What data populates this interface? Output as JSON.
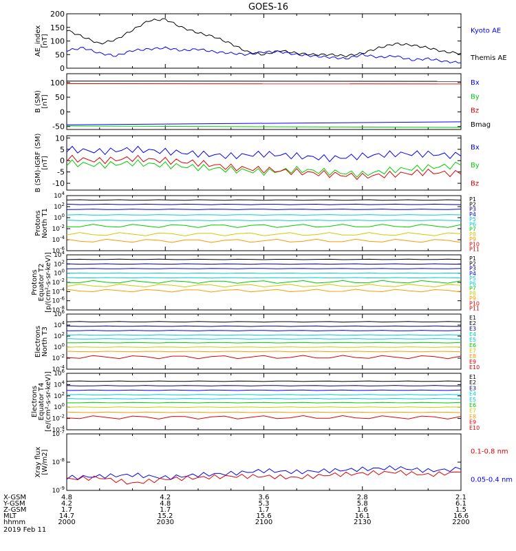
{
  "title": "GOES-16",
  "date_label": "2019 Feb 11",
  "footer": {
    "rows": [
      {
        "label": "X-GSM",
        "values": [
          "4.8",
          "4.2",
          "3.6",
          "2.8",
          "2.1"
        ]
      },
      {
        "label": "Y-GSM",
        "values": [
          "4.2",
          "4.8",
          "5.3",
          "5.8",
          "6.1"
        ]
      },
      {
        "label": "Z-GSM",
        "values": [
          "1.7",
          "1.7",
          "1.7",
          "1.6",
          "1.5"
        ]
      },
      {
        "label": "MLT",
        "values": [
          "14.7",
          "15.2",
          "15.6",
          "16.1",
          "16.6"
        ]
      },
      {
        "label": "hhmm",
        "values": [
          "2000",
          "2030",
          "2100",
          "2130",
          "2200"
        ]
      }
    ]
  },
  "colors": {
    "black": "#000000",
    "blue": "#0000ff",
    "green": "#00cc00",
    "red": "#e00000",
    "navy": "#000080",
    "cyan": "#00cccc",
    "yellow": "#cccc00",
    "orange": "#ff9900",
    "gold": "#cccc00"
  },
  "chart_data": [
    {
      "type": "line",
      "panel": "ae",
      "ylabel": [
        "AE_index",
        "[nT]"
      ],
      "ylim": [
        0,
        200
      ],
      "yticks": [
        "0",
        "50",
        "100",
        "150",
        "200"
      ],
      "legend": [
        {
          "name": "Kyoto AE",
          "color": "#0000ff"
        },
        {
          "name": "Themis AE",
          "color": "#000000"
        }
      ],
      "series": [
        {
          "name": "Themis AE",
          "color": "#000000",
          "x": [
            0,
            5,
            10,
            15,
            20,
            25,
            30,
            35,
            40,
            45,
            50,
            55,
            60,
            65,
            70,
            75,
            80,
            85,
            90,
            95,
            100,
            105,
            110,
            115,
            120
          ],
          "values": [
            140,
            115,
            90,
            105,
            140,
            175,
            180,
            150,
            130,
            115,
            90,
            60,
            50,
            65,
            55,
            50,
            50,
            45,
            55,
            75,
            90,
            85,
            75,
            60,
            55
          ]
        },
        {
          "name": "Kyoto AE",
          "color": "#0000ff",
          "x": [
            0,
            5,
            10,
            15,
            20,
            25,
            30,
            35,
            40,
            45,
            50,
            55,
            60,
            65,
            70,
            75,
            80,
            85,
            90,
            95,
            100,
            105,
            110,
            115,
            120
          ],
          "values": [
            65,
            75,
            55,
            45,
            65,
            70,
            75,
            65,
            70,
            60,
            55,
            50,
            60,
            60,
            50,
            45,
            40,
            35,
            50,
            40,
            45,
            30,
            35,
            25,
            20
          ]
        }
      ]
    },
    {
      "type": "line",
      "panel": "b_sm",
      "ylabel": [
        "B (SM)",
        "[nT]"
      ],
      "ylim": [
        -60,
        130
      ],
      "yticks": [
        "-50",
        "0",
        "50",
        "100"
      ],
      "legend": [
        {
          "name": "Bx",
          "color": "#0000ff"
        },
        {
          "name": "By",
          "color": "#00cc00"
        },
        {
          "name": "Bz",
          "color": "#e00000"
        },
        {
          "name": "Bmag",
          "color": "#000000"
        }
      ],
      "series": [
        {
          "name": "Bmag",
          "color": "#000000",
          "x": [
            0,
            120
          ],
          "values": [
            105,
            104
          ]
        },
        {
          "name": "Bz",
          "color": "#e00000",
          "x": [
            0,
            120
          ],
          "values": [
            96,
            95
          ]
        },
        {
          "name": "Bx",
          "color": "#0000ff",
          "x": [
            0,
            120
          ],
          "values": [
            -44,
            -34
          ]
        },
        {
          "name": "By",
          "color": "#00cc00",
          "x": [
            0,
            120
          ],
          "values": [
            -48,
            -53
          ]
        }
      ]
    },
    {
      "type": "line",
      "panel": "b_igrf",
      "ylabel": [
        "B (SM)-IGRF (SM)",
        "[nT]"
      ],
      "ylim": [
        -13,
        11
      ],
      "yticks": [
        "-10",
        "-5",
        "0",
        "5",
        "10"
      ],
      "legend": [
        {
          "name": "Bx",
          "color": "#0000ff"
        },
        {
          "name": "By",
          "color": "#00cc00"
        },
        {
          "name": "Bz",
          "color": "#e00000"
        }
      ],
      "series": [
        {
          "name": "Bx",
          "color": "#0000ff",
          "x": [
            0,
            10,
            20,
            30,
            40,
            50,
            60,
            70,
            80,
            90,
            100,
            110,
            120
          ],
          "values": [
            5,
            4,
            5,
            4,
            3,
            2,
            3,
            2,
            1,
            2,
            3,
            3,
            2
          ]
        },
        {
          "name": "By",
          "color": "#00cc00",
          "x": [
            0,
            10,
            20,
            30,
            40,
            50,
            60,
            70,
            80,
            90,
            100,
            110,
            120
          ],
          "values": [
            -1,
            -2,
            -1,
            -2,
            -3,
            -4,
            -5,
            -4,
            -5,
            -6,
            -4,
            -3,
            -2
          ]
        },
        {
          "name": "Bz",
          "color": "#e00000",
          "x": [
            0,
            10,
            20,
            30,
            40,
            50,
            60,
            70,
            80,
            90,
            100,
            110,
            120
          ],
          "values": [
            1,
            0,
            1,
            0,
            -1,
            -3,
            -4,
            -5,
            -6,
            -7,
            -6,
            -5,
            -6
          ]
        }
      ]
    },
    {
      "type": "line",
      "panel": "protons_t1",
      "ylabel": [
        "Protons",
        "North T1"
      ],
      "yscale": "log",
      "ylim_exp": [
        -6,
        4
      ],
      "ytick_exps": [
        -6,
        -4,
        -2,
        0,
        2,
        4
      ],
      "legend": [
        {
          "name": "P1",
          "color": "#000000"
        },
        {
          "name": "P2",
          "color": "#000000"
        },
        {
          "name": "P3",
          "color": "#000080"
        },
        {
          "name": "P4",
          "color": "#0000ff"
        },
        {
          "name": "P5",
          "color": "#00cccc"
        },
        {
          "name": "P6",
          "color": "#00cccc"
        },
        {
          "name": "P7",
          "color": "#00cc00"
        },
        {
          "name": "P8",
          "color": "#cccc00"
        },
        {
          "name": "P9",
          "color": "#ff9900"
        },
        {
          "name": "P10",
          "color": "#e00000"
        },
        {
          "name": "P11",
          "color": "#e00000"
        }
      ],
      "series_log10": [
        3.2,
        2.4,
        1.5,
        0.5,
        -0.5,
        -1.5,
        -3,
        -4.2
      ]
    },
    {
      "type": "line",
      "panel": "protons_t2",
      "ylabel": [
        "Protons",
        "Equator T2",
        "[p/(cm²-s-sr-keV)]"
      ],
      "yscale": "log",
      "ylim_exp": [
        -8,
        4
      ],
      "ytick_exps": [
        -8,
        -6,
        -4,
        -2,
        0,
        2,
        4
      ],
      "legend": [
        {
          "name": "P1",
          "color": "#000000"
        },
        {
          "name": "P2",
          "color": "#000000"
        },
        {
          "name": "P3",
          "color": "#000080"
        },
        {
          "name": "P4",
          "color": "#0000ff"
        },
        {
          "name": "P5",
          "color": "#00cccc"
        },
        {
          "name": "P6",
          "color": "#00cccc"
        },
        {
          "name": "P7",
          "color": "#00cc00"
        },
        {
          "name": "P8",
          "color": "#cccc00"
        },
        {
          "name": "P9",
          "color": "#ff9900"
        },
        {
          "name": "P10",
          "color": "#e00000"
        },
        {
          "name": "P11",
          "color": "#e00000"
        }
      ],
      "series_log10": [
        3,
        2,
        1,
        0,
        -1,
        -1.9,
        -2.7,
        -3.8
      ]
    },
    {
      "type": "line",
      "panel": "electrons_t3",
      "ylabel": [
        "Electrons",
        "North T3"
      ],
      "yscale": "log",
      "ylim_exp": [
        -4,
        6
      ],
      "ytick_exps": [
        -4,
        -2,
        0,
        2,
        4,
        6
      ],
      "legend": [
        {
          "name": "E1",
          "color": "#000000"
        },
        {
          "name": "E2",
          "color": "#000000"
        },
        {
          "name": "E3",
          "color": "#000080"
        },
        {
          "name": "E4",
          "color": "#00cccc"
        },
        {
          "name": "E5",
          "color": "#00cccc"
        },
        {
          "name": "E6",
          "color": "#00cc00"
        },
        {
          "name": "E7",
          "color": "#cccc00"
        },
        {
          "name": "E8",
          "color": "#ff9900"
        },
        {
          "name": "E9",
          "color": "#e00000"
        },
        {
          "name": "E10",
          "color": "#e00000"
        }
      ],
      "series_log10": [
        4.6,
        3.8,
        3,
        2.2,
        1.5,
        0.8,
        0,
        -0.8,
        -1.8
      ]
    },
    {
      "type": "line",
      "panel": "electrons_t4",
      "ylabel": [
        "Electrons",
        "Equator T4",
        "[e/(cm²-s-sr-keV)]"
      ],
      "yscale": "log",
      "ylim_exp": [
        -4,
        6
      ],
      "ytick_exps": [
        -4,
        -2,
        0,
        2,
        4,
        6
      ],
      "legend": [
        {
          "name": "E1",
          "color": "#000000"
        },
        {
          "name": "E2",
          "color": "#000000"
        },
        {
          "name": "E3",
          "color": "#000080"
        },
        {
          "name": "E4",
          "color": "#00cccc"
        },
        {
          "name": "E5",
          "color": "#00cccc"
        },
        {
          "name": "E6",
          "color": "#00cc00"
        },
        {
          "name": "E7",
          "color": "#cccc00"
        },
        {
          "name": "E8",
          "color": "#ff9900"
        },
        {
          "name": "E9",
          "color": "#e00000"
        },
        {
          "name": "E10",
          "color": "#e00000"
        }
      ],
      "series_log10": [
        4.6,
        3.8,
        3,
        2.2,
        1.5,
        0.8,
        0,
        -0.9,
        -1.8
      ]
    },
    {
      "type": "line",
      "panel": "xray",
      "ylabel": [
        "Xray flux",
        "[W/m2]"
      ],
      "yscale": "log",
      "ylim_exp": [
        -9,
        -7
      ],
      "ytick_exps": [
        -9,
        -8,
        -7
      ],
      "legend": [
        {
          "name": "0.1-0.8 nm",
          "color": "#e00000"
        },
        {
          "name": "0.05-0.4 nm",
          "color": "#0000ff"
        }
      ],
      "series": [
        {
          "name": "0.05-0.4 nm",
          "color": "#0000ff",
          "x": [
            0,
            10,
            20,
            30,
            40,
            50,
            60,
            70,
            80,
            90,
            100,
            110,
            120
          ],
          "values_log10": [
            -8.55,
            -8.5,
            -8.45,
            -8.55,
            -8.45,
            -8.4,
            -8.3,
            -8.35,
            -8.3,
            -8.25,
            -8.2,
            -8.3,
            -8.25
          ]
        },
        {
          "name": "0.1-0.8 nm",
          "color": "#e00000",
          "x": [
            0,
            10,
            20,
            30,
            40,
            50,
            60,
            70,
            80,
            90,
            100,
            110,
            120
          ],
          "values_log10": [
            -8.6,
            -8.55,
            -8.75,
            -8.6,
            -8.55,
            -8.5,
            -8.5,
            -8.55,
            -8.45,
            -8.4,
            -8.35,
            -8.45,
            -8.35
          ]
        }
      ]
    }
  ]
}
